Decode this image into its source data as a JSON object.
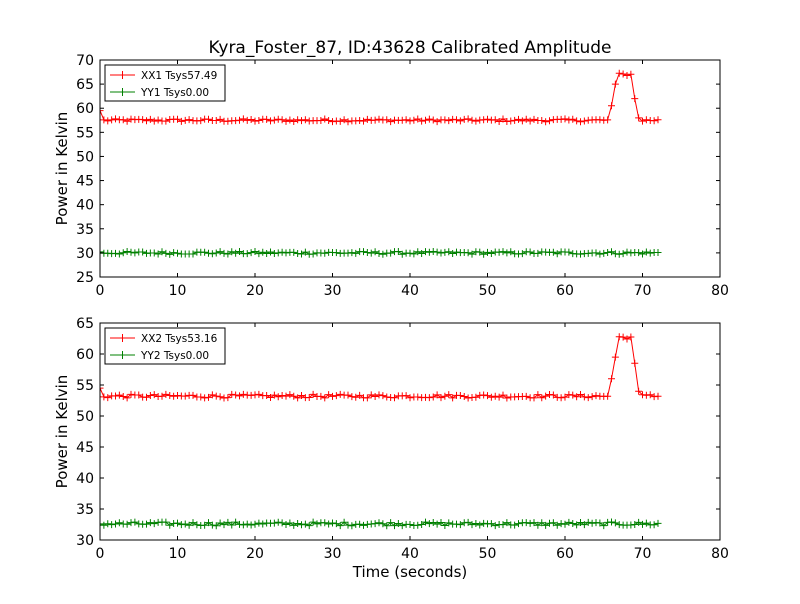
{
  "figure": {
    "title": "Kyra_Foster_87, ID:43628 Calibrated Amplitude"
  },
  "chart_data": [
    {
      "type": "line",
      "title": "Kyra_Foster_87, ID:43628 Calibrated Amplitude",
      "xlabel": "",
      "ylabel": "Power in Kelvin",
      "xlim": [
        0,
        80
      ],
      "ylim": [
        25,
        70
      ],
      "xticks": [
        0,
        10,
        20,
        30,
        40,
        50,
        60,
        70,
        80
      ],
      "yticks": [
        25,
        30,
        35,
        40,
        45,
        50,
        55,
        60,
        65,
        70
      ],
      "grid": false,
      "legend_position": "top-left",
      "series": [
        {
          "name": "XX1 Tsys57.49",
          "color": "#ff0000",
          "x_range": [
            0,
            72
          ],
          "step": 0.5,
          "baseline": 57.5,
          "initial_value": 59.5,
          "plateau": {
            "x_start": 66.5,
            "x_end": 68.5,
            "value": 67.0
          },
          "transition_points": [
            [
              66.0,
              60.5
            ],
            [
              66.5,
              65.0
            ],
            [
              69.0,
              62.0
            ],
            [
              69.5,
              58.0
            ]
          ]
        },
        {
          "name": "YY1 Tsys0.00",
          "color": "#008000",
          "x_range": [
            0,
            72
          ],
          "step": 0.5,
          "baseline": 30.0,
          "initial_value": 30.2,
          "plateau": null,
          "transition_points": []
        }
      ]
    },
    {
      "type": "line",
      "title": "",
      "xlabel": "Time (seconds)",
      "ylabel": "Power in Kelvin",
      "xlim": [
        0,
        80
      ],
      "ylim": [
        30,
        65
      ],
      "xticks": [
        0,
        10,
        20,
        30,
        40,
        50,
        60,
        70,
        80
      ],
      "yticks": [
        30,
        35,
        40,
        45,
        50,
        55,
        60,
        65
      ],
      "grid": false,
      "legend_position": "top-left",
      "series": [
        {
          "name": "XX2 Tsys53.16",
          "color": "#ff0000",
          "x_range": [
            0,
            72
          ],
          "step": 0.5,
          "baseline": 53.2,
          "initial_value": 54.5,
          "plateau": {
            "x_start": 66.5,
            "x_end": 68.5,
            "value": 62.7
          },
          "transition_points": [
            [
              66.0,
              56.0
            ],
            [
              66.5,
              59.5
            ],
            [
              69.0,
              58.5
            ],
            [
              69.5,
              54.0
            ]
          ]
        },
        {
          "name": "YY2 Tsys0.00",
          "color": "#008000",
          "x_range": [
            0,
            72
          ],
          "step": 0.5,
          "baseline": 32.6,
          "initial_value": 32.6,
          "plateau": null,
          "transition_points": []
        }
      ]
    }
  ]
}
